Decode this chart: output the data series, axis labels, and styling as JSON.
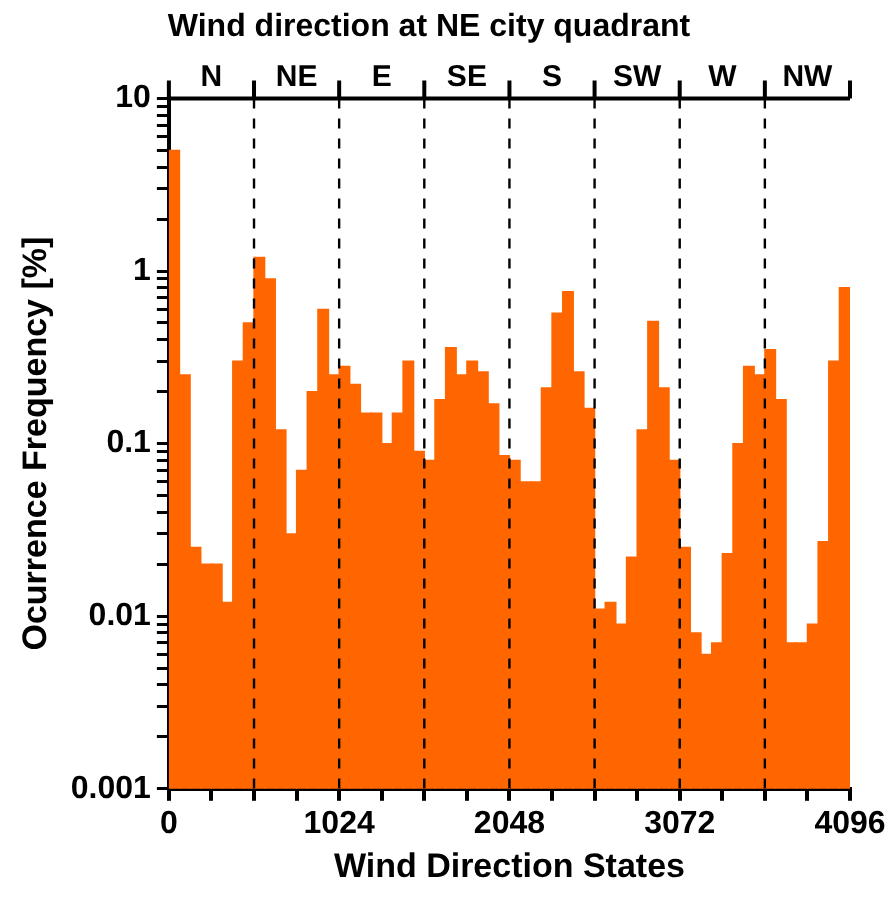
{
  "chart_data": {
    "type": "histogram",
    "title": "Wind direction at NE city quadrant",
    "xlabel": "Wind Direction States",
    "ylabel": "Ocurrence Frequency [%]",
    "annotations": [
      "N",
      "NE",
      "E",
      "SE",
      "S",
      "SW",
      "W",
      "NW"
    ],
    "bins": [
      0,
      64,
      128,
      192,
      256,
      320,
      384,
      448,
      512,
      576,
      640,
      704,
      768,
      832,
      896,
      960,
      1024,
      1088,
      1152,
      1216,
      1280,
      1344,
      1408,
      1472,
      1536,
      1600,
      1664,
      1728,
      1792,
      1856,
      1920,
      1984,
      2048,
      2112,
      2176,
      2240,
      2304,
      2368,
      2432,
      2496,
      2560,
      2624,
      2688,
      2752,
      2816,
      2880,
      2944,
      3008,
      3072,
      3136,
      3200,
      3264,
      3328,
      3392,
      3456,
      3520,
      3584,
      3648,
      3712,
      3776,
      3840,
      3904,
      3968,
      4032,
      4096
    ],
    "values": [
      5,
      0.25,
      0.025,
      0.02,
      0.02,
      0.012,
      0.3,
      0.5,
      1.2,
      0.9,
      0.12,
      0.03,
      0.07,
      0.2,
      0.6,
      0.25,
      0.28,
      0.22,
      0.15,
      0.15,
      0.1,
      0.15,
      0.3,
      0.09,
      0.08,
      0.18,
      0.36,
      0.25,
      0.3,
      0.26,
      0.17,
      0.085,
      0.08,
      0.06,
      0.06,
      0.21,
      0.57,
      0.76,
      0.26,
      0.16,
      0.011,
      0.012,
      0.009,
      0.022,
      0.12,
      0.51,
      0.21,
      0.08,
      0.025,
      0.008,
      0.006,
      0.007,
      0.023,
      0.1,
      0.28,
      0.25,
      0.35,
      0.18,
      0.007,
      0.007,
      0.009,
      0.027,
      0.3,
      0.8
    ],
    "color": "#ff6600",
    "log": "y",
    "grid": false,
    "legend": false,
    "xlim": [
      0,
      4096
    ],
    "xticks": [
      0,
      {
        "value": 256,
        "label": null
      },
      {
        "value": 512,
        "label": null
      },
      {
        "value": 768,
        "label": null
      },
      1024,
      {
        "value": 1280,
        "label": null
      },
      {
        "value": 1536,
        "label": null
      },
      {
        "value": 1792,
        "label": null
      },
      2048,
      {
        "value": 2304,
        "label": null
      },
      {
        "value": 2560,
        "label": null
      },
      {
        "value": 2816,
        "label": null
      },
      3072,
      {
        "value": 3328,
        "label": null
      },
      {
        "value": 3584,
        "label": null
      },
      {
        "value": 3840,
        "label": null
      },
      4096
    ],
    "ylim": [
      0.001,
      10
    ],
    "yticks": [
      0.001,
      {
        "value": 0.002,
        "label": null
      },
      {
        "value": 0.003,
        "label": null
      },
      {
        "value": 0.004,
        "label": null
      },
      {
        "value": 0.005,
        "label": null
      },
      {
        "value": 0.006,
        "label": null
      },
      {
        "value": 0.007,
        "label": null
      },
      {
        "value": 0.008,
        "label": null
      },
      {
        "value": 0.009,
        "label": null
      },
      0.01,
      {
        "value": 0.02,
        "label": null
      },
      {
        "value": 0.03,
        "label": null
      },
      {
        "value": 0.04,
        "label": null
      },
      {
        "value": 0.05,
        "label": null
      },
      {
        "value": 0.06,
        "label": null
      },
      {
        "value": 0.07,
        "label": null
      },
      {
        "value": 0.08,
        "label": null
      },
      {
        "value": 0.09,
        "label": null
      },
      0.1,
      {
        "value": 0.2,
        "label": null
      },
      {
        "value": 0.3,
        "label": null
      },
      {
        "value": 0.4,
        "label": null
      },
      {
        "value": 0.5,
        "label": null
      },
      {
        "value": 0.6,
        "label": null
      },
      {
        "value": 0.7,
        "label": null
      },
      {
        "value": 0.8,
        "label": null
      },
      {
        "value": 0.9,
        "label": null
      },
      1,
      {
        "value": 2,
        "label": null
      },
      {
        "value": 3,
        "label": null
      },
      {
        "value": 4,
        "label": null
      },
      {
        "value": 5,
        "label": null
      },
      {
        "value": 6,
        "label": null
      },
      {
        "value": 7,
        "label": null
      },
      {
        "value": 8,
        "label": null
      },
      {
        "value": 9,
        "label": null
      },
      10
    ],
    "ref_lines": [
      {
        "axis": "x",
        "value": 512,
        "label": null,
        "color": "#000000",
        "line_style": "dashed"
      },
      {
        "axis": "x",
        "value": 1024,
        "label": null,
        "color": "#000000",
        "line_style": "dashed"
      },
      {
        "axis": "x",
        "value": 1536,
        "label": null,
        "color": "#000000",
        "line_style": "dashed"
      },
      {
        "axis": "x",
        "value": 2048,
        "label": null,
        "color": "#000000",
        "line_style": "dashed"
      },
      {
        "axis": "x",
        "value": 2560,
        "label": null,
        "color": "#000000",
        "line_style": "dashed"
      },
      {
        "axis": "x",
        "value": 3072,
        "label": null,
        "color": "#000000",
        "line_style": "dashed"
      },
      {
        "axis": "x",
        "value": 3584,
        "label": null,
        "color": "#000000",
        "line_style": "dashed"
      }
    ]
  }
}
